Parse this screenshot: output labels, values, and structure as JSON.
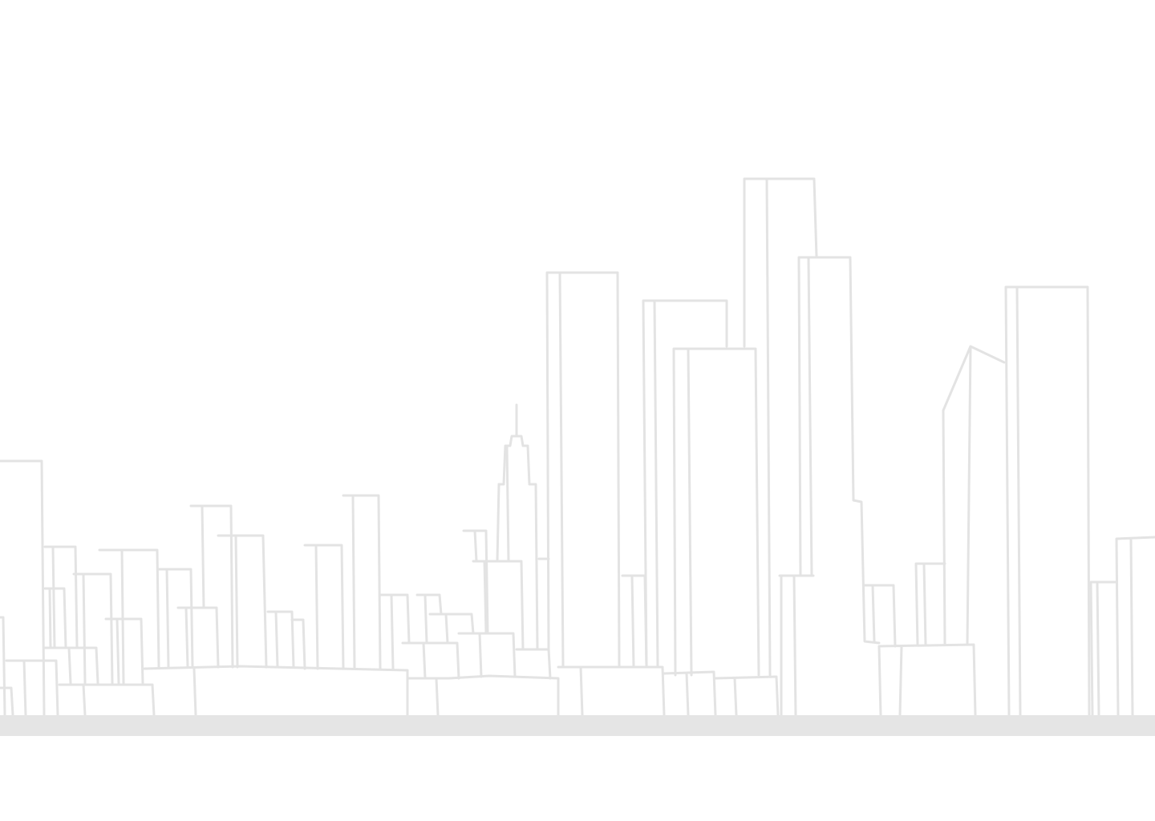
{
  "colors": {
    "background": "#ffffff",
    "outline": "#e3e3e3",
    "ground": "#e5e5e5"
  },
  "illustration": {
    "icon": "city-skyline-line-art"
  }
}
